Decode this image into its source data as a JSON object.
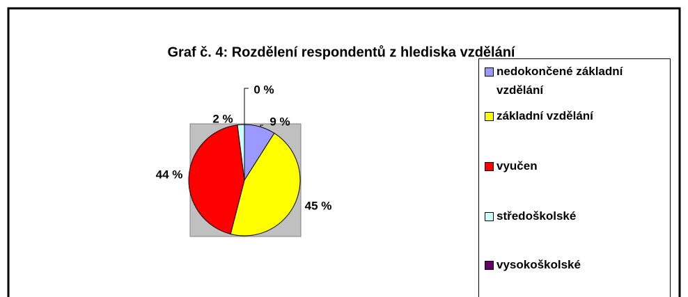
{
  "chart_data": {
    "type": "pie",
    "title": "Graf č. 4: Rozdělení respondentů z hlediska vzdělání",
    "categories": [
      "nedokončené základní vzdělání",
      "základní vzdělání",
      "vyučen",
      "středoškolské",
      "vysokoškolské"
    ],
    "values": [
      9,
      45,
      44,
      2,
      0
    ],
    "value_labels": [
      "9 %",
      "45 %",
      "44 %",
      "2 %",
      "0 %"
    ],
    "colors": [
      "#9999ff",
      "#ffff00",
      "#ff0000",
      "#ccffff",
      "#660066"
    ],
    "legend": "right"
  }
}
